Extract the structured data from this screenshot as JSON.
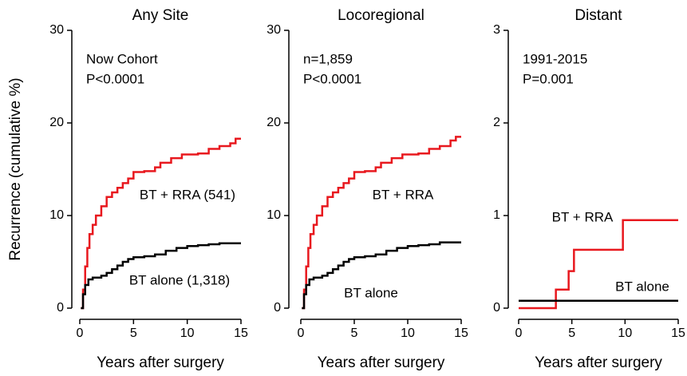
{
  "chart_data": [
    {
      "type": "line",
      "title": "Any Site",
      "ylabel": "Recurrence (cumulative %)",
      "xlabel": "Years after surgery",
      "annotations": [
        "Now Cohort",
        "P<0.0001"
      ],
      "xlim": [
        0,
        15
      ],
      "xticks": [
        0,
        5,
        10,
        15
      ],
      "ylim": [
        0,
        30
      ],
      "yticks": [
        0,
        10,
        20,
        30
      ],
      "step": true,
      "series": [
        {
          "name": "BT + RRA (541)",
          "color": "#e8181e",
          "x": [
            0.1,
            0.3,
            0.5,
            0.7,
            0.9,
            1.2,
            1.5,
            2,
            2.5,
            3,
            3.5,
            4,
            4.5,
            5,
            6,
            7,
            7.5,
            8.5,
            9.5,
            11,
            12,
            13,
            14,
            14.5,
            15
          ],
          "values": [
            0,
            2,
            4.5,
            6.5,
            8,
            9,
            10,
            11,
            12,
            12.5,
            13,
            13.5,
            14,
            14.7,
            14.8,
            15.2,
            15.7,
            16.2,
            16.6,
            16.7,
            17.2,
            17.5,
            17.8,
            18.3,
            18.3
          ]
        },
        {
          "name": "BT alone (1,318)",
          "color": "#000000",
          "x": [
            0.1,
            0.3,
            0.5,
            0.8,
            1.2,
            2,
            2.5,
            3,
            3.5,
            4,
            4.5,
            5,
            6,
            7,
            8,
            9,
            10,
            11,
            12,
            13,
            15
          ],
          "values": [
            0,
            1.5,
            2.5,
            3.1,
            3.3,
            3.5,
            3.8,
            4.2,
            4.6,
            5,
            5.3,
            5.5,
            5.6,
            5.8,
            6.2,
            6.5,
            6.7,
            6.8,
            6.9,
            7,
            7
          ]
        }
      ]
    },
    {
      "type": "line",
      "title": "Locoregional",
      "xlabel": "Years after surgery",
      "annotations": [
        "n=1,859",
        "P<0.0001"
      ],
      "xlim": [
        0,
        15
      ],
      "xticks": [
        0,
        5,
        10,
        15
      ],
      "ylim": [
        0,
        30
      ],
      "yticks": [
        0,
        10,
        20,
        30
      ],
      "step": true,
      "series": [
        {
          "name": "BT + RRA",
          "color": "#e8181e",
          "x": [
            0.1,
            0.3,
            0.5,
            0.7,
            0.9,
            1.2,
            1.5,
            2,
            2.5,
            3,
            3.5,
            4,
            4.5,
            5,
            6,
            7,
            7.5,
            8.5,
            9.5,
            11,
            12,
            13,
            14,
            14.5,
            15
          ],
          "values": [
            0,
            2,
            4.5,
            6.5,
            8,
            9,
            10,
            11,
            12,
            12.5,
            13,
            13.5,
            14,
            14.7,
            14.8,
            15.2,
            15.7,
            16.2,
            16.6,
            16.7,
            17.2,
            17.5,
            18.1,
            18.5,
            18.5
          ]
        },
        {
          "name": "BT alone",
          "color": "#000000",
          "x": [
            0.1,
            0.3,
            0.5,
            0.8,
            1.2,
            2,
            2.5,
            3,
            3.5,
            4,
            4.5,
            5,
            6,
            7,
            8,
            9,
            10,
            11,
            12,
            13,
            15
          ],
          "values": [
            0,
            1.5,
            2.5,
            3.1,
            3.3,
            3.5,
            3.8,
            4.2,
            4.6,
            5,
            5.3,
            5.5,
            5.6,
            5.8,
            6.2,
            6.5,
            6.7,
            6.8,
            6.9,
            7.1,
            7.1
          ]
        }
      ]
    },
    {
      "type": "line",
      "title": "Distant",
      "xlabel": "Years after surgery",
      "annotations": [
        "1991-2015",
        "P=0.001"
      ],
      "xlim": [
        0,
        15
      ],
      "xticks": [
        0,
        5,
        10,
        15
      ],
      "ylim": [
        0,
        3
      ],
      "yticks": [
        0,
        1,
        2,
        3
      ],
      "step": true,
      "series": [
        {
          "name": "BT + RRA",
          "color": "#e8181e",
          "x": [
            0,
            3.5,
            4.7,
            5.2,
            9.8,
            15
          ],
          "values": [
            0,
            0.2,
            0.4,
            0.63,
            0.95,
            0.95
          ]
        },
        {
          "name": "BT alone",
          "color": "#000000",
          "x": [
            0,
            15
          ],
          "values": [
            0.08,
            0.08
          ]
        }
      ]
    }
  ]
}
